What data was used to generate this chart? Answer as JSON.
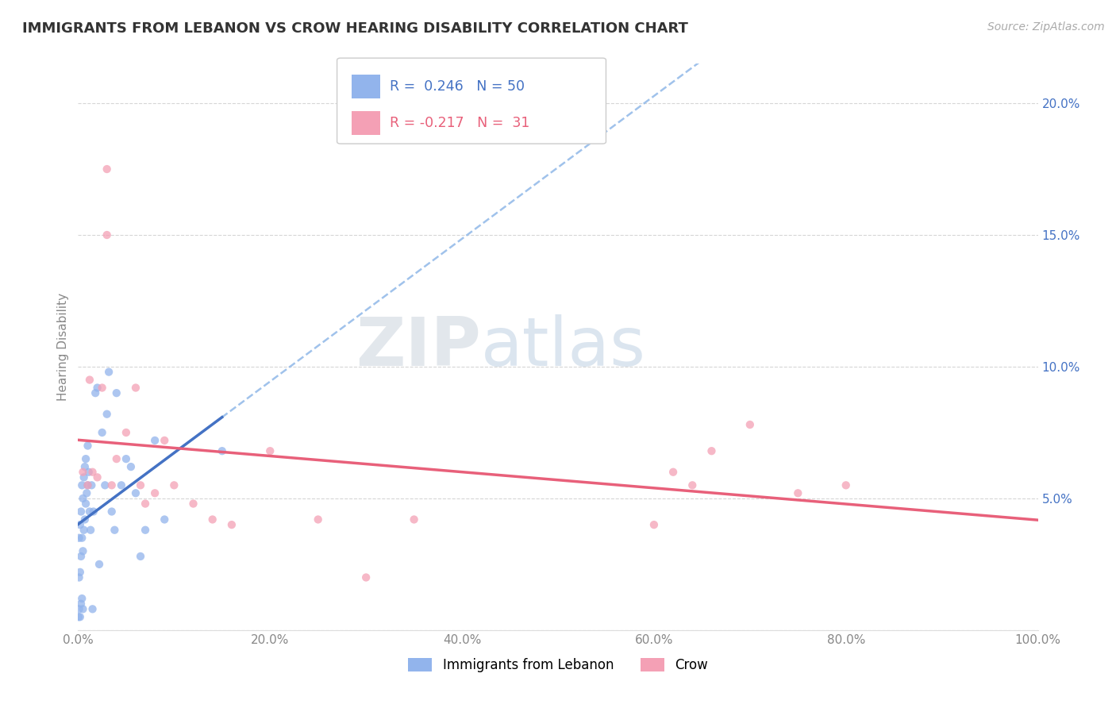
{
  "title": "IMMIGRANTS FROM LEBANON VS CROW HEARING DISABILITY CORRELATION CHART",
  "source": "Source: ZipAtlas.com",
  "ylabel": "Hearing Disability",
  "xlim": [
    0.0,
    1.0
  ],
  "ylim": [
    0.0,
    0.215
  ],
  "xticks": [
    0.0,
    0.2,
    0.4,
    0.6,
    0.8,
    1.0
  ],
  "xtick_labels": [
    "0.0%",
    "20.0%",
    "40.0%",
    "60.0%",
    "80.0%",
    "100.0%"
  ],
  "yticks": [
    0.0,
    0.05,
    0.1,
    0.15,
    0.2
  ],
  "ytick_labels": [
    "",
    "5.0%",
    "10.0%",
    "15.0%",
    "20.0%"
  ],
  "blue_R": 0.246,
  "blue_N": 50,
  "pink_R": -0.217,
  "pink_N": 31,
  "blue_color": "#92b4ec",
  "pink_color": "#f4a0b5",
  "blue_line_color": "#4472c4",
  "pink_line_color": "#e8607a",
  "dash_line_color": "#90b8e8",
  "watermark_color": "#d8e8f0",
  "blue_scatter_x": [
    0.0005,
    0.001,
    0.001,
    0.001,
    0.002,
    0.002,
    0.002,
    0.003,
    0.003,
    0.003,
    0.004,
    0.004,
    0.004,
    0.005,
    0.005,
    0.005,
    0.006,
    0.006,
    0.007,
    0.007,
    0.008,
    0.008,
    0.009,
    0.01,
    0.01,
    0.011,
    0.012,
    0.013,
    0.014,
    0.015,
    0.016,
    0.018,
    0.02,
    0.022,
    0.025,
    0.028,
    0.03,
    0.032,
    0.035,
    0.038,
    0.04,
    0.045,
    0.05,
    0.055,
    0.06,
    0.065,
    0.07,
    0.08,
    0.09,
    0.15
  ],
  "blue_scatter_y": [
    0.005,
    0.008,
    0.02,
    0.035,
    0.005,
    0.022,
    0.04,
    0.01,
    0.028,
    0.045,
    0.012,
    0.035,
    0.055,
    0.008,
    0.03,
    0.05,
    0.038,
    0.058,
    0.042,
    0.062,
    0.048,
    0.065,
    0.052,
    0.055,
    0.07,
    0.06,
    0.045,
    0.038,
    0.055,
    0.008,
    0.045,
    0.09,
    0.092,
    0.025,
    0.075,
    0.055,
    0.082,
    0.098,
    0.045,
    0.038,
    0.09,
    0.055,
    0.065,
    0.062,
    0.052,
    0.028,
    0.038,
    0.072,
    0.042,
    0.068
  ],
  "pink_scatter_x": [
    0.005,
    0.01,
    0.012,
    0.015,
    0.02,
    0.025,
    0.03,
    0.03,
    0.035,
    0.04,
    0.05,
    0.06,
    0.065,
    0.07,
    0.08,
    0.09,
    0.1,
    0.12,
    0.14,
    0.16,
    0.2,
    0.25,
    0.3,
    0.35,
    0.6,
    0.62,
    0.64,
    0.66,
    0.7,
    0.75,
    0.8
  ],
  "pink_scatter_y": [
    0.06,
    0.055,
    0.095,
    0.06,
    0.058,
    0.092,
    0.15,
    0.175,
    0.055,
    0.065,
    0.075,
    0.092,
    0.055,
    0.048,
    0.052,
    0.072,
    0.055,
    0.048,
    0.042,
    0.04,
    0.068,
    0.042,
    0.02,
    0.042,
    0.04,
    0.06,
    0.055,
    0.068,
    0.078,
    0.052,
    0.055
  ]
}
